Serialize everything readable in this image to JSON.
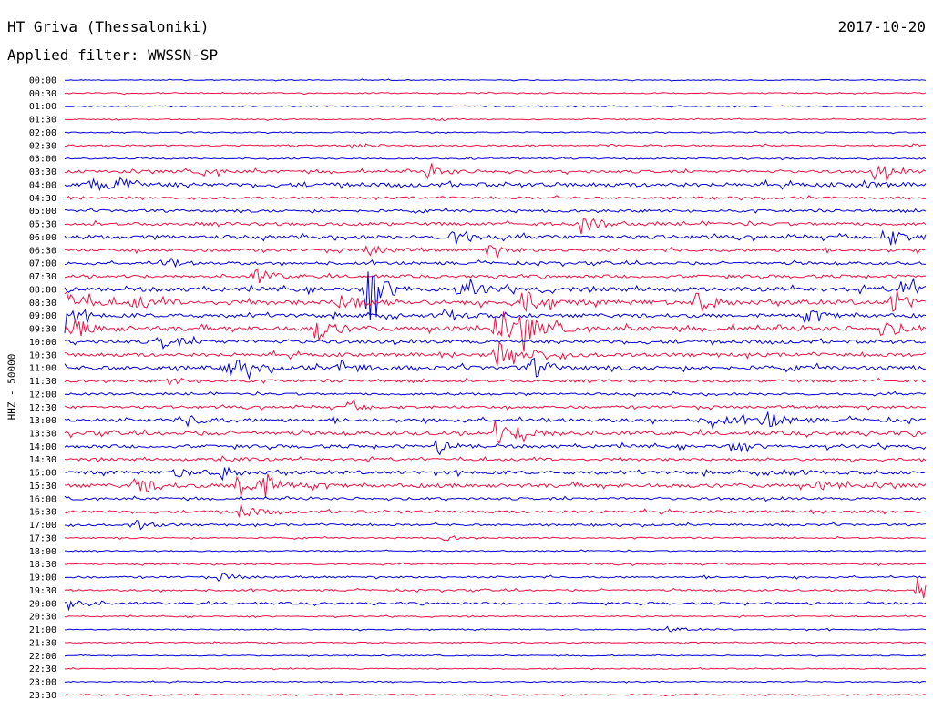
{
  "header": {
    "station": "HT Griva (Thessaloniki)",
    "filter": "Applied filter: WWSSN-SP",
    "date": "2017-10-20"
  },
  "chart_data": {
    "type": "line",
    "title": "HT Griva (Thessaloniki)",
    "subtitle": "Applied filter: WWSSN-SP",
    "date": "2017-10-20",
    "ylabel": "HHZ - 50000",
    "row_labels": [
      "00:00",
      "00:30",
      "01:00",
      "01:30",
      "02:00",
      "02:30",
      "03:00",
      "03:30",
      "04:00",
      "04:30",
      "05:00",
      "05:30",
      "06:00",
      "06:30",
      "07:00",
      "07:30",
      "08:00",
      "08:30",
      "09:00",
      "09:30",
      "10:00",
      "10:30",
      "11:00",
      "11:30",
      "12:00",
      "12:30",
      "13:00",
      "13:30",
      "14:00",
      "14:30",
      "15:00",
      "15:30",
      "16:00",
      "16:30",
      "17:00",
      "17:30",
      "18:00",
      "18:30",
      "19:00",
      "19:30",
      "20:00",
      "20:30",
      "21:00",
      "21:30",
      "22:00",
      "22:30",
      "23:00",
      "23:30"
    ],
    "series_colors": [
      "#0000dd",
      "#ee1144"
    ],
    "trace_activity": [
      0.05,
      0.1,
      0.05,
      0.08,
      0.1,
      0.2,
      0.15,
      0.5,
      0.8,
      0.35,
      0.45,
      0.6,
      0.7,
      0.55,
      0.5,
      0.55,
      0.85,
      0.95,
      0.75,
      0.9,
      0.65,
      0.7,
      0.8,
      0.5,
      0.35,
      0.45,
      0.7,
      0.75,
      0.6,
      0.45,
      0.65,
      0.75,
      0.4,
      0.45,
      0.3,
      0.15,
      0.1,
      0.15,
      0.25,
      0.25,
      0.35,
      0.1,
      0.1,
      0.1,
      0.05,
      0.08,
      0.08,
      0.1
    ],
    "events": [
      {
        "row": 3,
        "x": 0.43,
        "amp": 0.3
      },
      {
        "row": 5,
        "x": 0.33,
        "amp": 0.6
      },
      {
        "row": 7,
        "x": 0.16,
        "amp": 0.7
      },
      {
        "row": 7,
        "x": 0.42,
        "amp": 1.1
      },
      {
        "row": 7,
        "x": 0.94,
        "amp": 1.4
      },
      {
        "row": 8,
        "x": 0.03,
        "amp": 1.3
      },
      {
        "row": 8,
        "x": 0.06,
        "amp": 1.5
      },
      {
        "row": 8,
        "x": 0.92,
        "amp": 0.7
      },
      {
        "row": 11,
        "x": 0.6,
        "amp": 1.6
      },
      {
        "row": 12,
        "x": 0.45,
        "amp": 2.0
      },
      {
        "row": 12,
        "x": 0.95,
        "amp": 2.0
      },
      {
        "row": 13,
        "x": 0.35,
        "amp": 1.1
      },
      {
        "row": 13,
        "x": 0.49,
        "amp": 1.0
      },
      {
        "row": 14,
        "x": 0.11,
        "amp": 1.0
      },
      {
        "row": 15,
        "x": 0.22,
        "amp": 1.4
      },
      {
        "row": 16,
        "x": 0.35,
        "amp": 4.5
      },
      {
        "row": 16,
        "x": 0.46,
        "amp": 2.2
      },
      {
        "row": 16,
        "x": 0.97,
        "amp": 1.6
      },
      {
        "row": 17,
        "x": 0.0,
        "amp": 2.2
      },
      {
        "row": 17,
        "x": 0.08,
        "amp": 1.2
      },
      {
        "row": 17,
        "x": 0.32,
        "amp": 1.9
      },
      {
        "row": 17,
        "x": 0.53,
        "amp": 2.6
      },
      {
        "row": 17,
        "x": 0.73,
        "amp": 2.0
      },
      {
        "row": 17,
        "x": 0.96,
        "amp": 2.6
      },
      {
        "row": 18,
        "x": 0.0,
        "amp": 1.2
      },
      {
        "row": 18,
        "x": 0.44,
        "amp": 1.0
      },
      {
        "row": 18,
        "x": 0.86,
        "amp": 1.0
      },
      {
        "row": 19,
        "x": 0.01,
        "amp": 1.8
      },
      {
        "row": 19,
        "x": 0.29,
        "amp": 2.3
      },
      {
        "row": 19,
        "x": 0.5,
        "amp": 2.2
      },
      {
        "row": 19,
        "x": 0.53,
        "amp": 2.6
      },
      {
        "row": 19,
        "x": 0.95,
        "amp": 1.5
      },
      {
        "row": 20,
        "x": 0.11,
        "amp": 1.5
      },
      {
        "row": 21,
        "x": 0.5,
        "amp": 2.3
      },
      {
        "row": 21,
        "x": 0.54,
        "amp": 1.2
      },
      {
        "row": 22,
        "x": 0.19,
        "amp": 2.1
      },
      {
        "row": 22,
        "x": 0.32,
        "amp": 1.4
      },
      {
        "row": 22,
        "x": 0.54,
        "amp": 2.0
      },
      {
        "row": 23,
        "x": 0.12,
        "amp": 0.6
      },
      {
        "row": 25,
        "x": 0.33,
        "amp": 0.7
      },
      {
        "row": 26,
        "x": 0.14,
        "amp": 1.2
      },
      {
        "row": 26,
        "x": 0.75,
        "amp": 1.3
      },
      {
        "row": 26,
        "x": 0.81,
        "amp": 2.0
      },
      {
        "row": 27,
        "x": 0.5,
        "amp": 2.3
      },
      {
        "row": 27,
        "x": 0.53,
        "amp": 1.2
      },
      {
        "row": 28,
        "x": 0.43,
        "amp": 1.0
      },
      {
        "row": 28,
        "x": 0.77,
        "amp": 0.7
      },
      {
        "row": 29,
        "x": 0.18,
        "amp": 0.6
      },
      {
        "row": 30,
        "x": 0.13,
        "amp": 1.2
      },
      {
        "row": 30,
        "x": 0.18,
        "amp": 1.2
      },
      {
        "row": 30,
        "x": 0.83,
        "amp": 0.8
      },
      {
        "row": 31,
        "x": 0.08,
        "amp": 2.0
      },
      {
        "row": 31,
        "x": 0.2,
        "amp": 2.8
      },
      {
        "row": 31,
        "x": 0.23,
        "amp": 2.0
      },
      {
        "row": 31,
        "x": 0.87,
        "amp": 0.8
      },
      {
        "row": 33,
        "x": 0.2,
        "amp": 1.5
      },
      {
        "row": 34,
        "x": 0.08,
        "amp": 1.0
      },
      {
        "row": 35,
        "x": 0.44,
        "amp": 0.5
      },
      {
        "row": 38,
        "x": 0.18,
        "amp": 0.7
      },
      {
        "row": 39,
        "x": 0.99,
        "amp": 3.0
      },
      {
        "row": 40,
        "x": 0.0,
        "amp": 1.4
      },
      {
        "row": 42,
        "x": 0.7,
        "amp": 0.5
      }
    ]
  }
}
